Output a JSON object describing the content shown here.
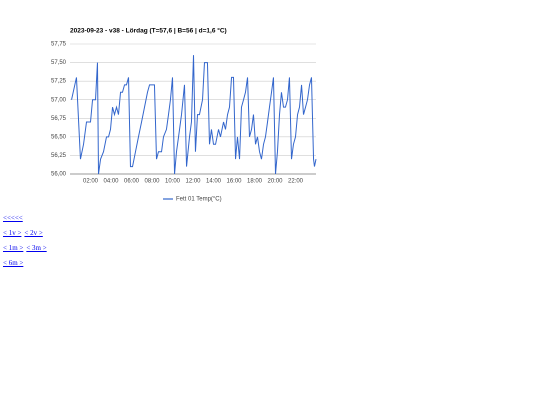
{
  "chart_data": {
    "type": "line",
    "title": "2023-09-23 - v38 - Lördag (T=57,6 | B=56 | d=1,6 °C)",
    "x": [
      0.15,
      0.63,
      1.02,
      1.32,
      1.61,
      2.0,
      2.2,
      2.49,
      2.68,
      2.78,
      2.98,
      3.27,
      3.56,
      3.76,
      3.95,
      4.15,
      4.34,
      4.54,
      4.73,
      4.93,
      5.12,
      5.32,
      5.51,
      5.71,
      5.9,
      6.1,
      6.39,
      6.68,
      6.98,
      7.27,
      7.56,
      7.76,
      7.95,
      8.24,
      8.44,
      8.63,
      8.93,
      9.12,
      9.41,
      9.61,
      9.8,
      10.0,
      10.2,
      10.39,
      10.59,
      10.88,
      11.17,
      11.37,
      11.66,
      11.85,
      12.05,
      12.24,
      12.44,
      12.63,
      12.93,
      13.12,
      13.41,
      13.61,
      13.8,
      14.0,
      14.2,
      14.49,
      14.68,
      14.98,
      15.17,
      15.37,
      15.56,
      15.76,
      15.95,
      16.15,
      16.34,
      16.54,
      16.73,
      16.93,
      17.12,
      17.32,
      17.51,
      17.71,
      17.9,
      18.1,
      18.29,
      18.49,
      18.68,
      18.88,
      19.07,
      19.27,
      19.46,
      19.66,
      19.85,
      20.05,
      20.24,
      20.44,
      20.63,
      20.83,
      21.02,
      21.22,
      21.41,
      21.61,
      21.8,
      22.0,
      22.2,
      22.39,
      22.59,
      22.78,
      22.98,
      23.17,
      23.37,
      23.56,
      23.76,
      23.85,
      24.0
    ],
    "series": [
      {
        "name": "Fett 01 Temp(°C)",
        "color": "#3366cc",
        "values": [
          57.0,
          57.3,
          56.2,
          56.4,
          56.7,
          56.7,
          57.0,
          57.0,
          57.5,
          56.0,
          56.2,
          56.3,
          56.5,
          56.5,
          56.6,
          56.9,
          56.8,
          56.9,
          56.8,
          57.1,
          57.1,
          57.2,
          57.2,
          57.3,
          56.1,
          56.1,
          56.3,
          56.5,
          56.7,
          56.9,
          57.1,
          57.2,
          57.2,
          57.2,
          56.2,
          56.3,
          56.3,
          56.5,
          56.6,
          56.8,
          57.0,
          57.3,
          56.0,
          56.3,
          56.5,
          56.8,
          57.2,
          56.1,
          56.5,
          56.7,
          57.6,
          56.3,
          56.8,
          56.8,
          57.0,
          57.5,
          57.5,
          56.4,
          56.6,
          56.4,
          56.4,
          56.6,
          56.5,
          56.7,
          56.6,
          56.8,
          56.9,
          57.3,
          57.3,
          56.2,
          56.5,
          56.2,
          56.9,
          57.0,
          57.1,
          57.3,
          56.5,
          56.6,
          56.8,
          56.4,
          56.5,
          56.3,
          56.2,
          56.4,
          56.5,
          56.7,
          56.9,
          57.1,
          57.3,
          56.0,
          56.3,
          56.8,
          57.1,
          56.9,
          56.9,
          57.0,
          57.3,
          56.2,
          56.4,
          56.5,
          56.8,
          56.9,
          57.2,
          56.8,
          56.9,
          57.0,
          57.2,
          57.3,
          56.2,
          56.1,
          56.2
        ]
      }
    ],
    "xlim": [
      0,
      24
    ],
    "xticks": [
      {
        "value": 2,
        "label": "02:00"
      },
      {
        "value": 4,
        "label": "04:00"
      },
      {
        "value": 6,
        "label": "06:00"
      },
      {
        "value": 8,
        "label": "08:00"
      },
      {
        "value": 10,
        "label": "10:00"
      },
      {
        "value": 12,
        "label": "12:00"
      },
      {
        "value": 14,
        "label": "14:00"
      },
      {
        "value": 16,
        "label": "16:00"
      },
      {
        "value": 18,
        "label": "18:00"
      },
      {
        "value": 20,
        "label": "20:00"
      },
      {
        "value": 22,
        "label": "22:00"
      }
    ],
    "ylim": [
      56,
      57.75
    ],
    "yticks": [
      {
        "value": 56,
        "label": "56,00"
      },
      {
        "value": 56.25,
        "label": "56,25"
      },
      {
        "value": 56.5,
        "label": "56,50"
      },
      {
        "value": 56.75,
        "label": "56,75"
      },
      {
        "value": 57,
        "label": "57,00"
      },
      {
        "value": 57.25,
        "label": "57,25"
      },
      {
        "value": 57.5,
        "label": "57,50"
      },
      {
        "value": 57.75,
        "label": "57,75"
      }
    ],
    "grid": true,
    "legend": "bottom"
  },
  "links": [
    [
      "<<<<<"
    ],
    [
      "< 1v >",
      "< 2v >"
    ],
    [
      "< 1m >",
      "< 3m >"
    ],
    [
      "< 6m >"
    ]
  ]
}
